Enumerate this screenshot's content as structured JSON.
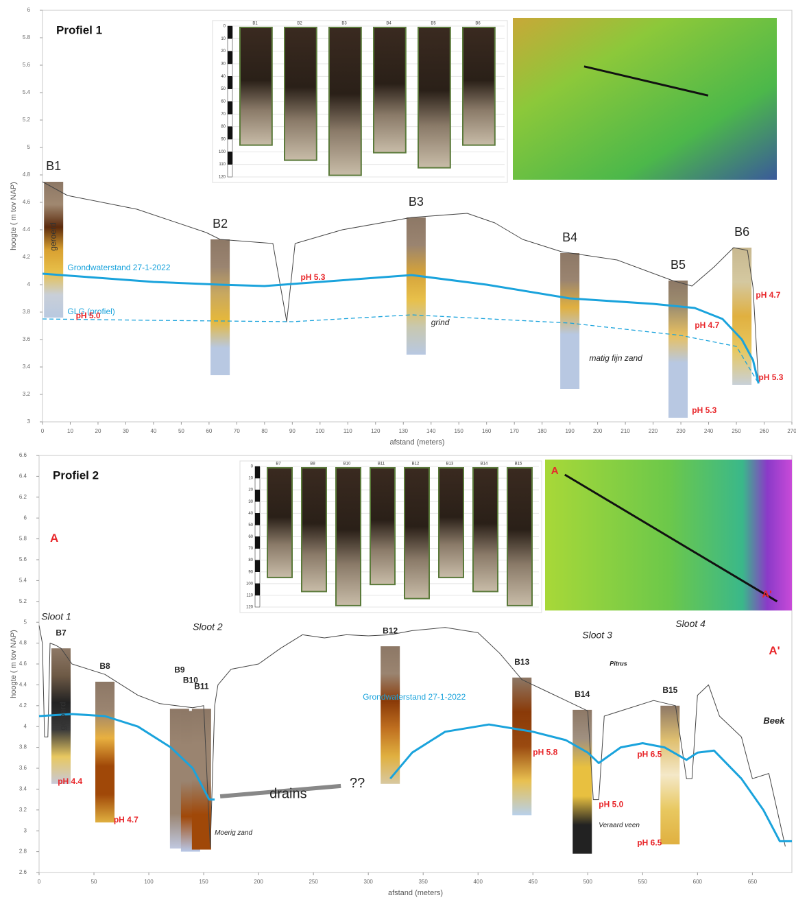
{
  "chart_data": [
    {
      "type": "line",
      "title": "Profiel 1",
      "x_label": "afstand (meters)",
      "y_label": "hoogte ( m tov NAP)",
      "xlim": [
        0,
        270
      ],
      "ylim": [
        3,
        6
      ],
      "xticks": [
        0,
        10,
        20,
        30,
        40,
        50,
        60,
        70,
        80,
        90,
        100,
        110,
        120,
        130,
        140,
        150,
        160,
        170,
        180,
        190,
        200,
        210,
        220,
        230,
        240,
        250,
        260,
        270
      ],
      "yticks": [
        3,
        3.2,
        3.4,
        3.6,
        3.8,
        4,
        4.2,
        4.4,
        4.6,
        4.8,
        5,
        5.2,
        5.4,
        5.6,
        5.8,
        6
      ],
      "series": [
        {
          "color": "#444444",
          "x": [
            0,
            9,
            34,
            59,
            64,
            83,
            88,
            91,
            108,
            133,
            153,
            163,
            173,
            187,
            207,
            227,
            234,
            242,
            249,
            254,
            256,
            258
          ],
          "values": [
            4.75,
            4.65,
            4.55,
            4.38,
            4.33,
            4.3,
            3.73,
            4.3,
            4.4,
            4.49,
            4.52,
            4.45,
            4.33,
            4.24,
            4.18,
            4.03,
            3.99,
            4.13,
            4.27,
            4.25,
            3.98,
            3.28
          ]
        },
        {
          "name": "Grondwaterstand 27-1-2022",
          "color": "#1aa3dc",
          "x": [
            0,
            20,
            40,
            64,
            80,
            100,
            133,
            160,
            190,
            220,
            235,
            245,
            252,
            256,
            258
          ],
          "values": [
            4.08,
            4.05,
            4.02,
            4,
            3.99,
            4.02,
            4.07,
            4,
            3.9,
            3.86,
            3.83,
            3.75,
            3.6,
            3.45,
            3.28
          ]
        },
        {
          "name": "GLG (profiel)",
          "color": "#1aa3dc",
          "dashed": true,
          "x": [
            0,
            40,
            90,
            133,
            190,
            230,
            250,
            258
          ],
          "values": [
            3.75,
            3.74,
            3.73,
            3.78,
            3.72,
            3.63,
            3.55,
            3.28
          ]
        }
      ],
      "boreholes": [
        {
          "label": "B1",
          "x": 4,
          "top": 4.75,
          "bottom": 3.76,
          "colors": [
            "#8d7866",
            "#a08870",
            "#5b2a0c",
            "#d8a030",
            "#e8c04a",
            "#c9cfd8",
            "#b9c9e0"
          ]
        },
        {
          "label": "B2",
          "x": 64,
          "top": 4.33,
          "bottom": 3.34,
          "colors": [
            "#8d7866",
            "#9a8470",
            "#c8a860",
            "#e6b83a",
            "#b8c8e2",
            "#b8c8e2"
          ]
        },
        {
          "label": "B3",
          "x": 134.6,
          "top": 4.49,
          "bottom": 3.49,
          "colors": [
            "#8d7866",
            "#9a8470",
            "#d4a23a",
            "#e8c04a",
            "#c8c8b0",
            "#b8c8e2"
          ]
        },
        {
          "label": "B4",
          "x": 190,
          "top": 4.23,
          "bottom": 3.24,
          "colors": [
            "#8d7866",
            "#9a8470",
            "#e0b040",
            "#b8c8e2",
            "#b8c8e2",
            "#b8c8e2"
          ]
        },
        {
          "label": "B5",
          "x": 229,
          "top": 4.03,
          "bottom": 3.03,
          "colors": [
            "#8d7866",
            "#a09070",
            "#e8c060",
            "#b8c8e2",
            "#b8c8e2",
            "#b8c8e2"
          ]
        },
        {
          "label": "B6",
          "x": 252,
          "top": 4.27,
          "bottom": 3.27,
          "colors": [
            "#c8b890",
            "#d4c8a0",
            "#e0b040",
            "#e8c860",
            "#c8d0d8"
          ]
        }
      ],
      "annotations": [
        "geroerd",
        "pH 5.3",
        "pH 5.0",
        "grind",
        "matig fijn zand",
        "pH 4.7",
        "pH 4.7",
        "pH 5.3",
        "pH 5.3"
      ],
      "inset": {
        "core_labels": [
          "B1",
          "B2",
          "B3",
          "B4",
          "B5",
          "B6"
        ],
        "depth_ticks": [
          0,
          10,
          20,
          30,
          40,
          50,
          60,
          70,
          80,
          90,
          100,
          110,
          120
        ]
      }
    },
    {
      "type": "line",
      "title": "Profiel 2",
      "x_label": "afstand (meters)",
      "y_label": "hoogte ( m tov NAP)",
      "xlim": [
        0,
        686
      ],
      "ylim": [
        2.6,
        6.6
      ],
      "xticks": [
        0,
        50,
        100,
        150,
        200,
        250,
        300,
        350,
        400,
        450,
        500,
        550,
        600,
        650
      ],
      "yticks": [
        2.6,
        2.8,
        3,
        3.2,
        3.4,
        3.6,
        3.8,
        4,
        4.2,
        4.4,
        4.6,
        4.8,
        5,
        5.2,
        5.4,
        5.6,
        5.8,
        6,
        6.2,
        6.4,
        6.6
      ],
      "series": [
        {
          "color": "#444444",
          "x": [
            0,
            3,
            5,
            8,
            10,
            15,
            20,
            30,
            60,
            90,
            110,
            140,
            150,
            156,
            160,
            163,
            175,
            200,
            220,
            240,
            260,
            280,
            300,
            320,
            340,
            370,
            400,
            420,
            440,
            460,
            480,
            500,
            505,
            510,
            515,
            530,
            560,
            580,
            590,
            595,
            600,
            610,
            620,
            640,
            650,
            665,
            680
          ],
          "values": [
            4.97,
            4.8,
            3.9,
            3.9,
            4.8,
            4.78,
            4.75,
            4.6,
            4.5,
            4.3,
            4.22,
            4.18,
            4.2,
            2.84,
            4.2,
            4.4,
            4.55,
            4.6,
            4.75,
            4.88,
            4.85,
            4.88,
            4.87,
            4.88,
            4.92,
            4.95,
            4.9,
            4.7,
            4.45,
            4.35,
            4.25,
            4.15,
            3.3,
            3.3,
            4.1,
            4.15,
            4.25,
            4.2,
            3.5,
            3.5,
            4.3,
            4.4,
            4.1,
            3.9,
            3.5,
            3.55,
            2.85
          ]
        },
        {
          "name": "Grondwaterstand 27-1-2022",
          "color": "#1aa3dc",
          "x": [
            0,
            30,
            60,
            90,
            120,
            140,
            155,
            160,
            240,
            320,
            340,
            370,
            410,
            450,
            480,
            500,
            510,
            530,
            550,
            570,
            590,
            600,
            615,
            640,
            660,
            675,
            686
          ],
          "values": [
            4.1,
            4.12,
            4.1,
            4,
            3.8,
            3.6,
            3.3,
            3.3,
            null,
            3.5,
            3.75,
            3.95,
            4.02,
            3.95,
            3.87,
            3.75,
            3.65,
            3.8,
            3.84,
            3.8,
            3.68,
            3.75,
            3.77,
            3.5,
            3.2,
            2.9,
            2.9
          ]
        }
      ],
      "boreholes": [
        {
          "label": "B7",
          "x": 20,
          "top": 4.75,
          "bottom": 3.45,
          "colors": [
            "#8d7866",
            "#6e5a46",
            "#222222",
            "#3a3a3a",
            "#e8c860",
            "#c8c8d8"
          ]
        },
        {
          "label": "B8",
          "x": 60,
          "top": 4.43,
          "bottom": 3.08,
          "colors": [
            "#8d7866",
            "#9a8470",
            "#e8b040",
            "#a04808",
            "#a04808",
            "#e0b040"
          ]
        },
        {
          "label": "B9",
          "x": 128,
          "top": 4.17,
          "bottom": 2.83,
          "colors": [
            "#8d7866",
            "#9a8470",
            "#9a8470",
            "#9a8470",
            "#c0c8e0"
          ]
        },
        {
          "label": "B10",
          "x": 138,
          "top": 4.15,
          "bottom": 2.8,
          "colors": [
            "#8d7866",
            "#9a8470",
            "#9a8470",
            "#a04808",
            "#b8c8e8"
          ]
        },
        {
          "label": "B11",
          "x": 148,
          "top": 4.17,
          "bottom": 2.82,
          "colors": [
            "#8d7866",
            "#9a8470",
            "#9a8470",
            "#a04808",
            "#a04808"
          ]
        },
        {
          "label": "B12",
          "x": 320,
          "top": 4.77,
          "bottom": 3.45,
          "colors": [
            "#8d7866",
            "#9a8470",
            "#8a3a08",
            "#c07020",
            "#e0b040",
            "#d8c8a0"
          ]
        },
        {
          "label": "B13",
          "x": 440,
          "top": 4.47,
          "bottom": 3.15,
          "colors": [
            "#8d7866",
            "#8a3a08",
            "#9a4a10",
            "#e8c050",
            "#b8d0ea"
          ]
        },
        {
          "label": "B14",
          "x": 495,
          "top": 4.16,
          "bottom": 2.78,
          "colors": [
            "#8d7866",
            "#a09080",
            "#e8c040",
            "#e8c040",
            "#222222",
            "#222222"
          ]
        },
        {
          "label": "B15",
          "x": 575,
          "top": 4.2,
          "bottom": 2.87,
          "colors": [
            "#8d7866",
            "#e0c070",
            "#f4e8c8",
            "#e8c860",
            "#e0b040"
          ]
        }
      ],
      "annotations": [
        "A",
        "A'",
        "Sloot 1",
        "Sloot 2",
        "Sloot 3",
        "Sloot 4",
        "Pitrus",
        "Beek",
        "geroerd",
        "pH 4.4",
        "pH 4.7",
        "Moerig zand",
        "drains",
        "??",
        "pH 5.8",
        "pH 5.0",
        "Veraard veen",
        "pH 6.5",
        "pH 6.5"
      ],
      "inset": {
        "core_labels": [
          "B7",
          "B8",
          "B10",
          "B11",
          "B12",
          "B13",
          "B14",
          "B15"
        ],
        "depth_ticks": [
          0,
          10,
          20,
          30,
          40,
          50,
          60,
          70,
          80,
          90,
          100,
          110,
          120
        ],
        "map_labels": [
          "A",
          "A'"
        ]
      }
    }
  ]
}
